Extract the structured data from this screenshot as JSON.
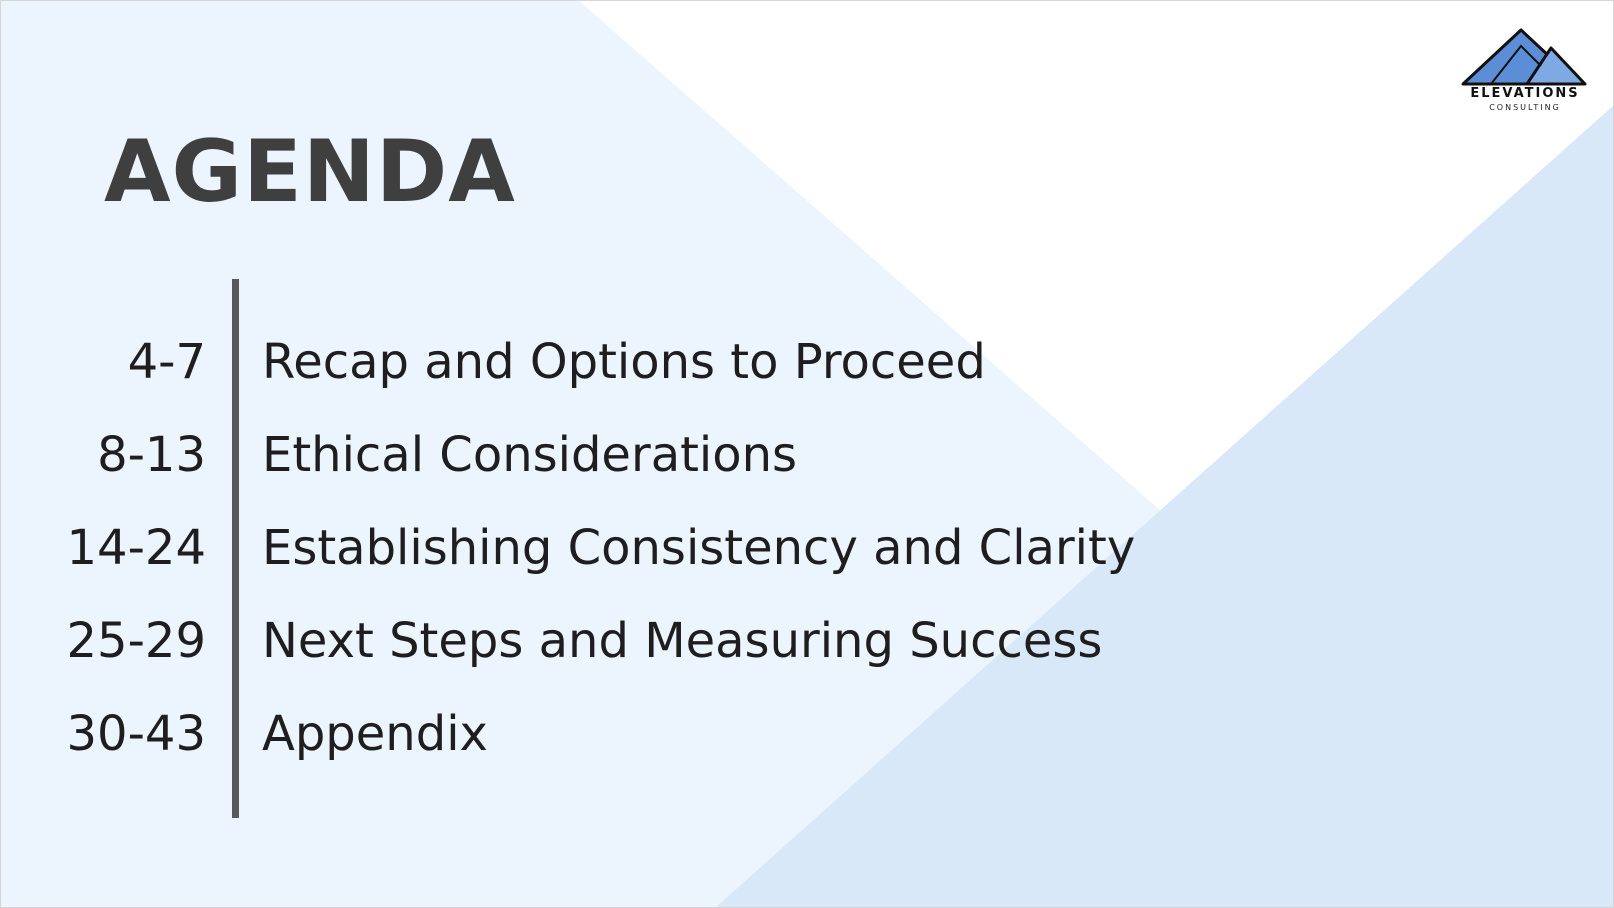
{
  "slide": {
    "title": "AGENDA",
    "logo": {
      "name": "ELEVATIONS",
      "tagline": "CONSULTING",
      "icon": "mountain-icon"
    },
    "agenda_items": [
      {
        "pages": "4-7",
        "topic": "Recap and Options to Proceed"
      },
      {
        "pages": "8-13",
        "topic": "Ethical Considerations"
      },
      {
        "pages": "14-24",
        "topic": "Establishing Consistency and Clarity"
      },
      {
        "pages": "25-29",
        "topic": "Next Steps and Measuring Success"
      },
      {
        "pages": "30-43",
        "topic": "Appendix"
      }
    ],
    "colors": {
      "title": "#3f3f3f",
      "text": "#1e1e1e",
      "divider": "#595959",
      "bg_light_blue": "#ecf4fd",
      "bg_mid_blue": "#d8e8f9",
      "logo_blue": "#5b8ed6"
    }
  }
}
